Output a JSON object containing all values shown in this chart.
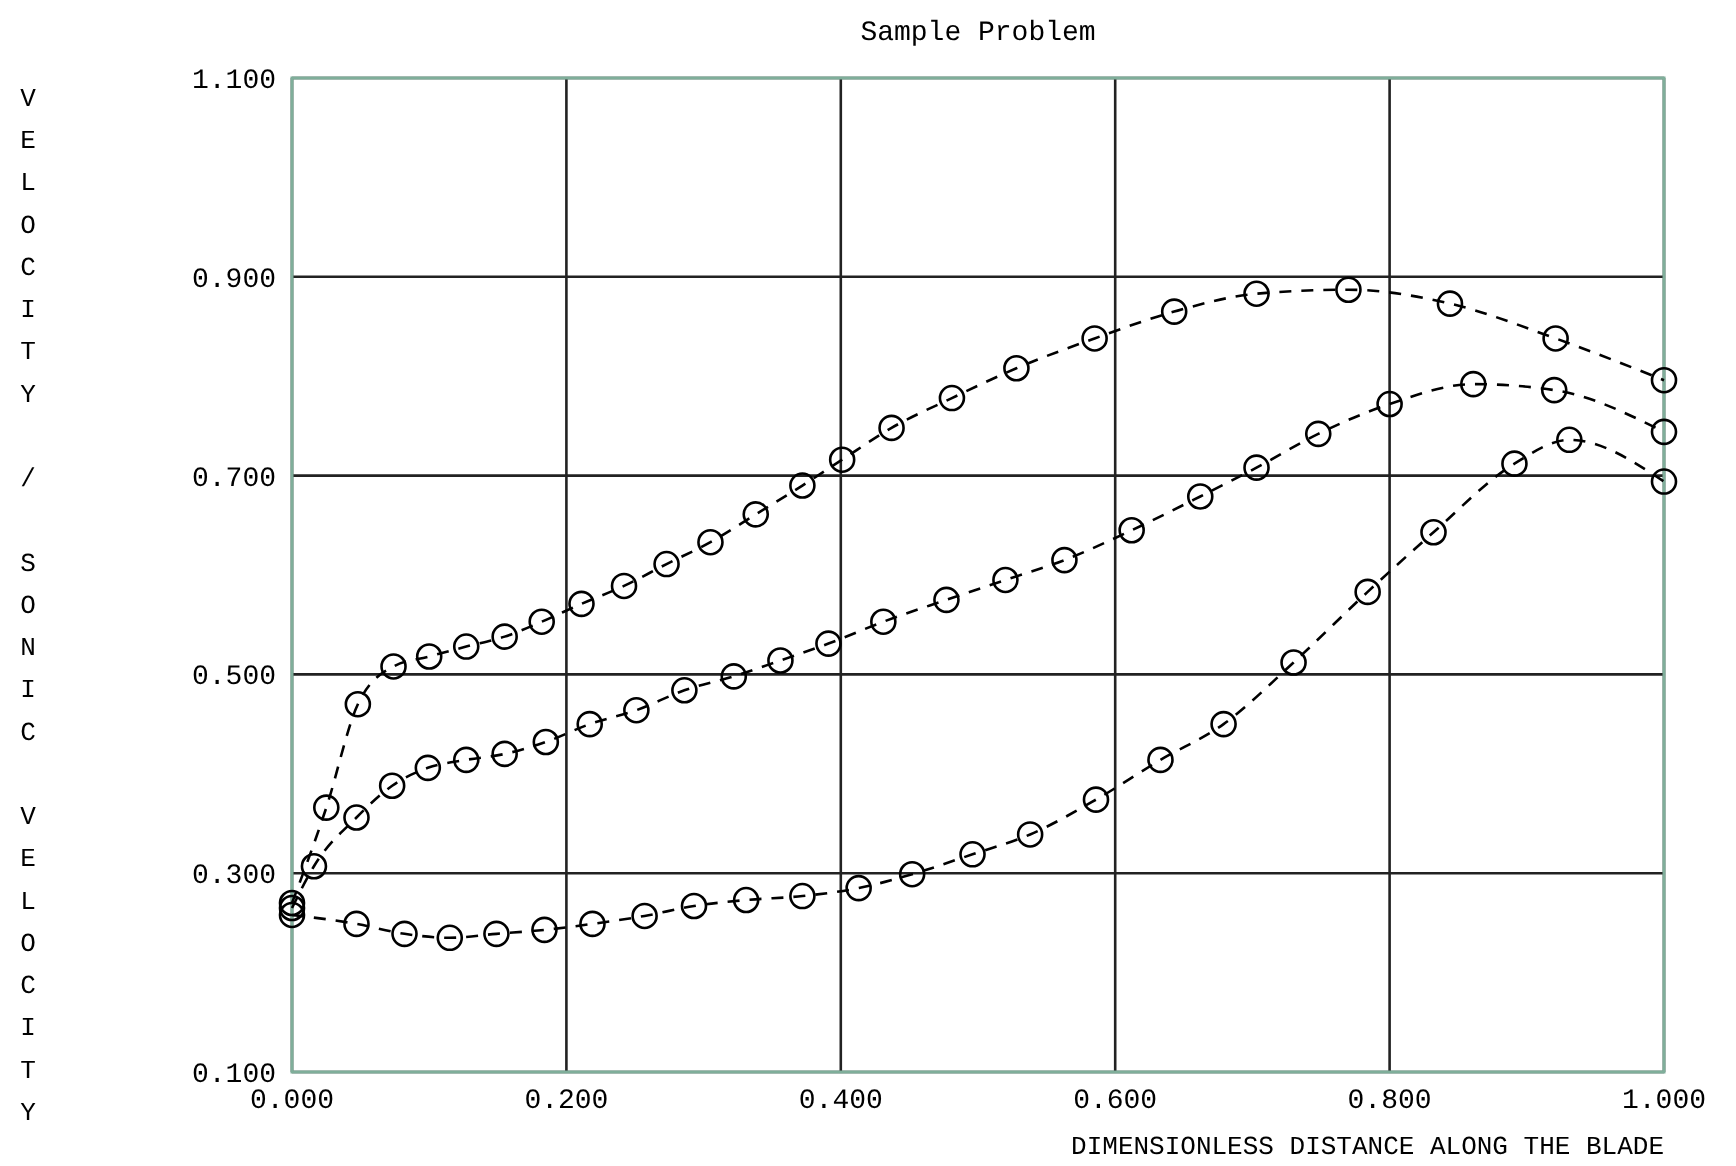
{
  "chart_data": {
    "type": "line",
    "title": "Sample Problem",
    "xlabel": "DIMENSIONLESS DISTANCE ALONG THE BLADE",
    "ylabel": "VELOCITY / SONIC VELOCITY",
    "xlim": [
      0,
      1
    ],
    "ylim": [
      0.1,
      1.1
    ],
    "xticks": [
      {
        "value": 0,
        "label": "0.000"
      },
      {
        "value": 0.2,
        "label": "0.200"
      },
      {
        "value": 0.4,
        "label": "0.400"
      },
      {
        "value": 0.6,
        "label": "0.600"
      },
      {
        "value": 0.8,
        "label": "0.800"
      },
      {
        "value": 1,
        "label": "1.000"
      }
    ],
    "yticks": [
      {
        "value": 0.1,
        "label": "0.100"
      },
      {
        "value": 0.3,
        "label": "0.300"
      },
      {
        "value": 0.5,
        "label": "0.500"
      },
      {
        "value": 0.7,
        "label": "0.700"
      },
      {
        "value": 0.9,
        "label": "0.900"
      },
      {
        "value": 1.1,
        "label": "1.100"
      }
    ],
    "grid": true,
    "marker": "circle",
    "line_style": "dashed",
    "series": [
      {
        "color": "#000000",
        "x": [
          0,
          0.025,
          0.048,
          0.074,
          0.1,
          0.127,
          0.155,
          0.182,
          0.211,
          0.242,
          0.273,
          0.305,
          0.338,
          0.372,
          0.401,
          0.437,
          0.481,
          0.528,
          0.585,
          0.643,
          0.703,
          0.77,
          0.844,
          0.921,
          1.0
        ],
        "values": [
          0.27,
          0.366,
          0.47,
          0.508,
          0.518,
          0.528,
          0.538,
          0.553,
          0.571,
          0.589,
          0.611,
          0.633,
          0.661,
          0.69,
          0.716,
          0.748,
          0.778,
          0.808,
          0.838,
          0.865,
          0.883,
          0.887,
          0.873,
          0.838,
          0.796
        ]
      },
      {
        "color": "#000000",
        "x": [
          0,
          0.016,
          0.047,
          0.073,
          0.099,
          0.127,
          0.155,
          0.185,
          0.217,
          0.251,
          0.286,
          0.322,
          0.356,
          0.391,
          0.431,
          0.477,
          0.52,
          0.563,
          0.612,
          0.662,
          0.703,
          0.748,
          0.8,
          0.861,
          0.92,
          1.0
        ],
        "values": [
          0.265,
          0.307,
          0.356,
          0.388,
          0.406,
          0.414,
          0.42,
          0.432,
          0.45,
          0.464,
          0.484,
          0.498,
          0.514,
          0.531,
          0.553,
          0.575,
          0.595,
          0.615,
          0.645,
          0.679,
          0.708,
          0.742,
          0.772,
          0.792,
          0.786,
          0.744
        ]
      },
      {
        "color": "#000000",
        "x": [
          0,
          0.047,
          0.082,
          0.115,
          0.149,
          0.184,
          0.219,
          0.257,
          0.293,
          0.331,
          0.372,
          0.413,
          0.452,
          0.496,
          0.538,
          0.586,
          0.633,
          0.679,
          0.73,
          0.784,
          0.832,
          0.891,
          0.931,
          1.0
        ],
        "values": [
          0.258,
          0.249,
          0.239,
          0.235,
          0.239,
          0.243,
          0.249,
          0.257,
          0.267,
          0.273,
          0.277,
          0.285,
          0.299,
          0.319,
          0.339,
          0.374,
          0.414,
          0.45,
          0.512,
          0.583,
          0.643,
          0.712,
          0.736,
          0.694
        ]
      }
    ]
  }
}
